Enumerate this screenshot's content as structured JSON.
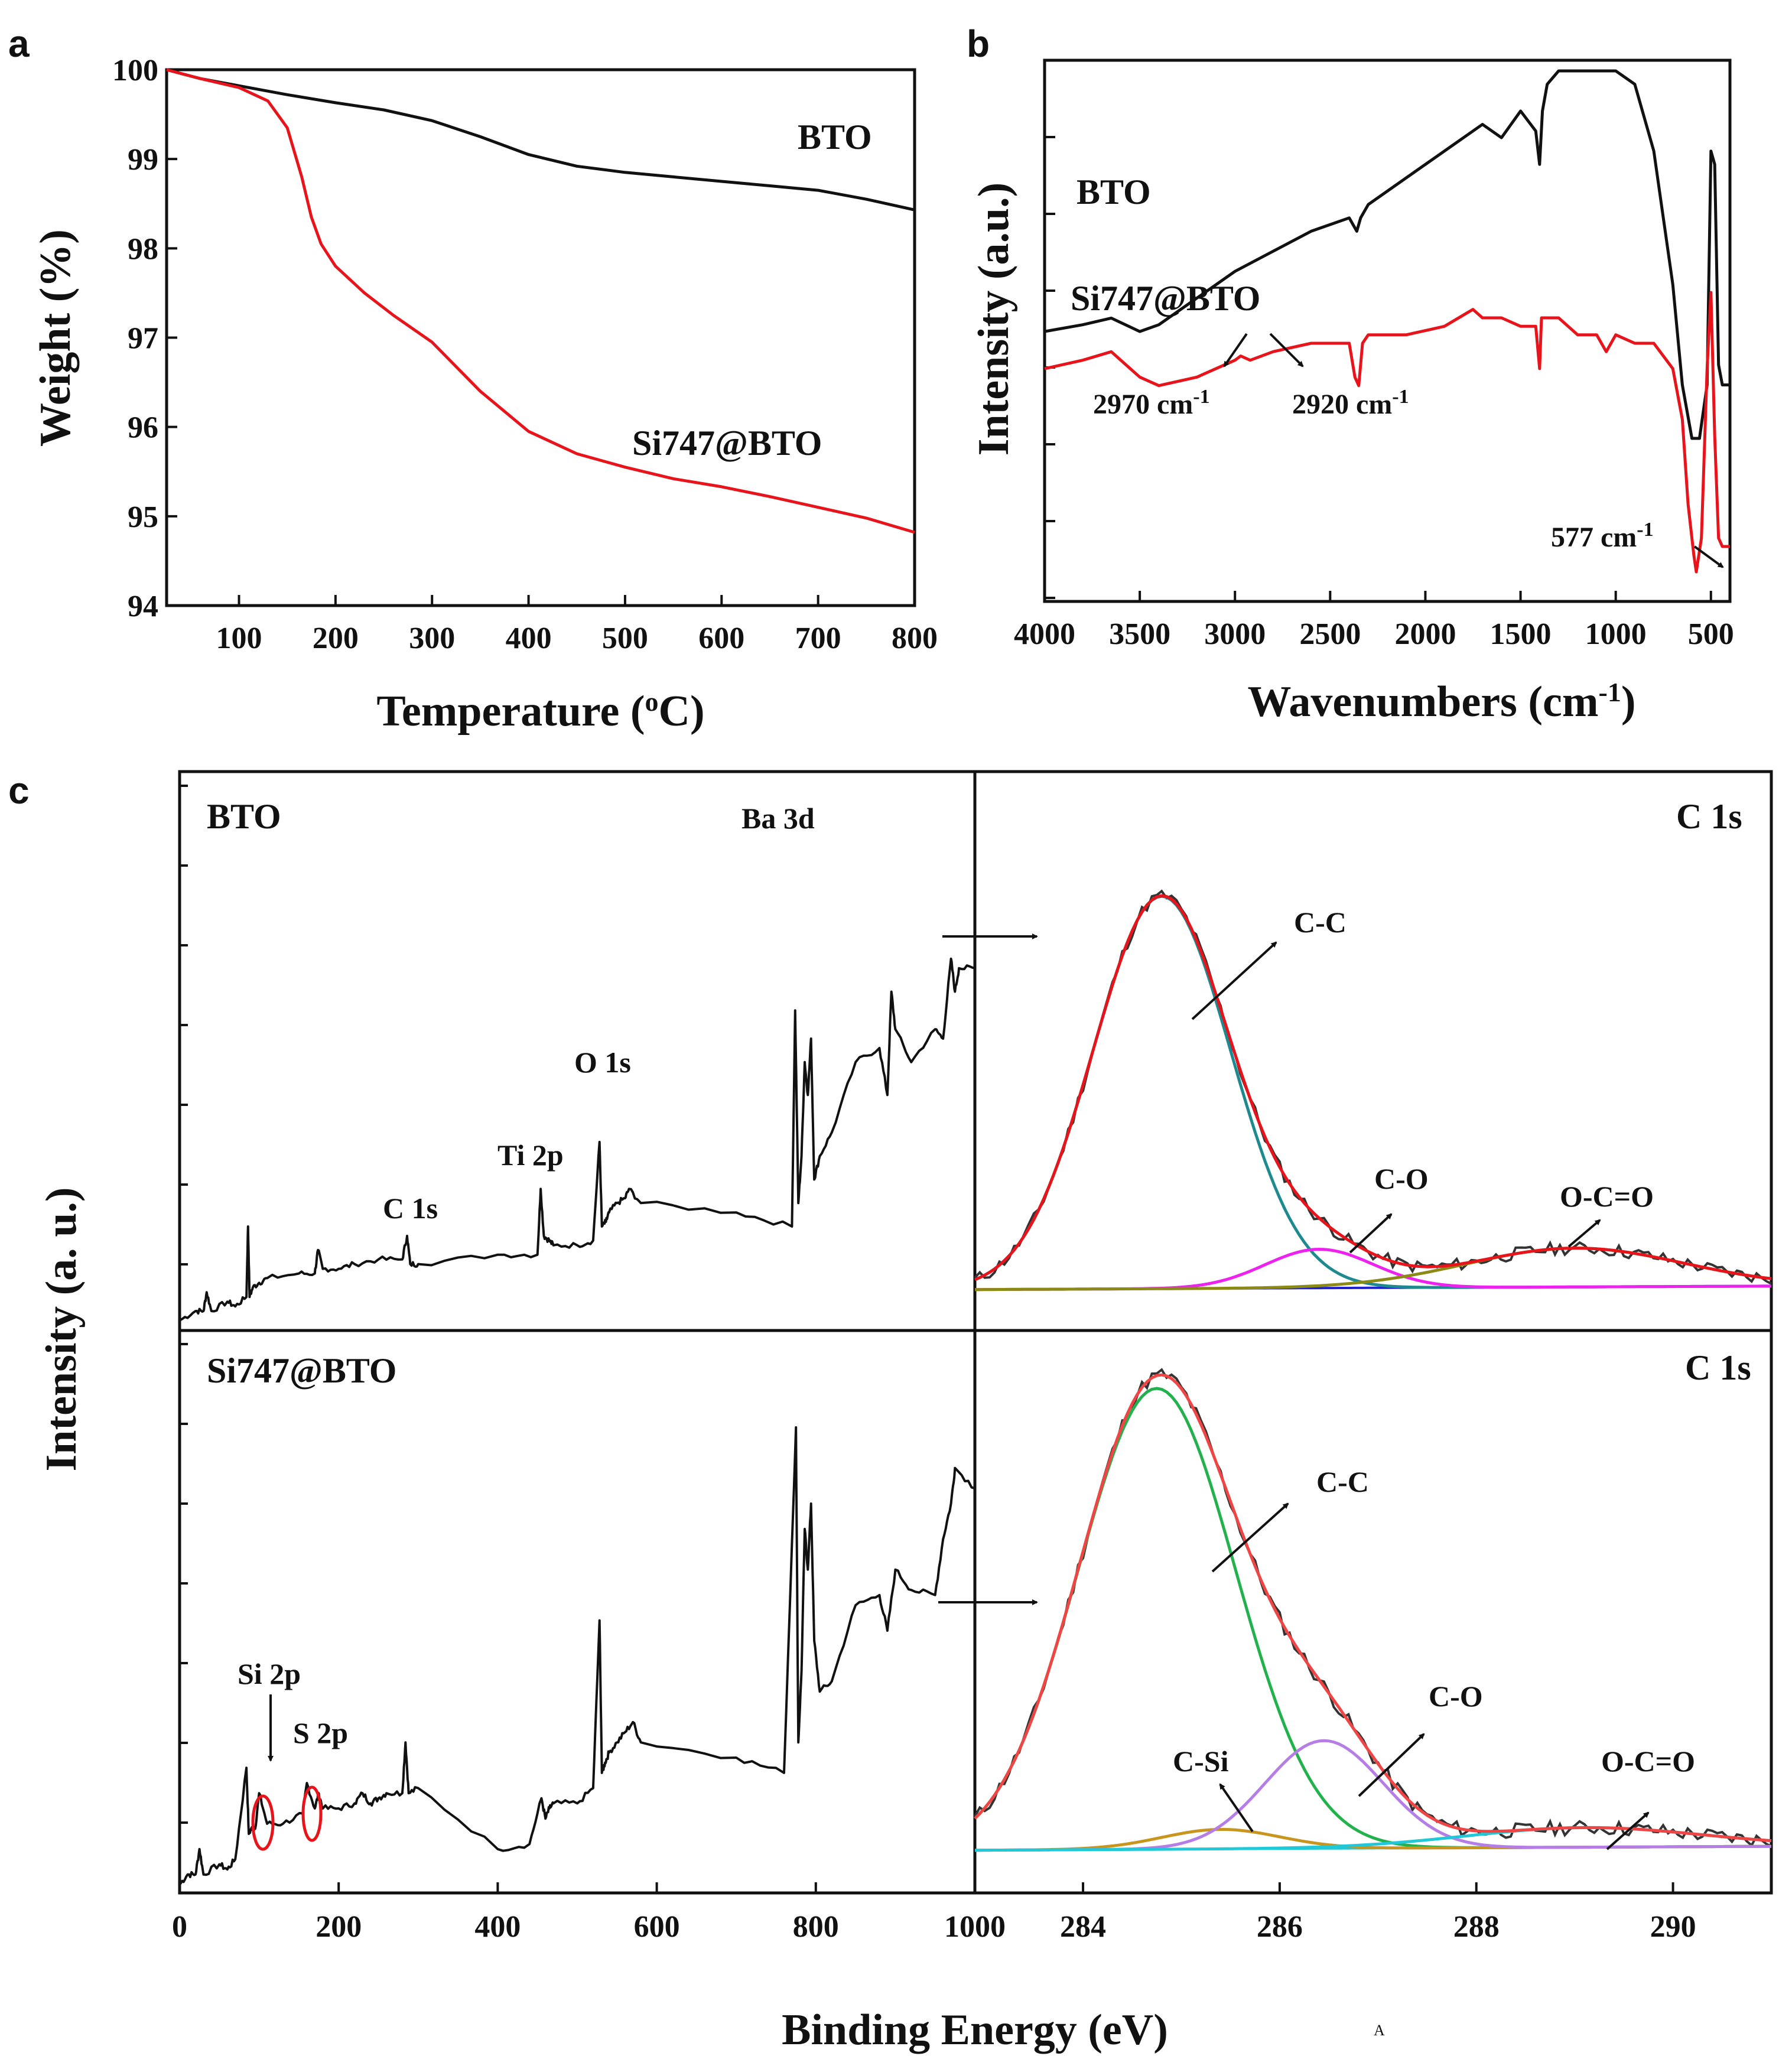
{
  "colors": {
    "black": "#111111",
    "red": "#e8141b",
    "teal": "#1e8a8f",
    "magenta": "#ee22ee",
    "olive": "#8b8a16",
    "blue": "#2020d0",
    "green": "#22b14c",
    "purple": "#b57ee6",
    "gold": "#c8961e",
    "cyan": "#20c8d8",
    "redfit": "#ef4545"
  },
  "chart_data": [
    {
      "id": "a",
      "panel_label": "a",
      "type": "line",
      "xlabel": "Temperature (°C)",
      "xlabel_pre": "Temperature (",
      "xlabel_sup": "o",
      "xlabel_post": "C)",
      "ylabel": "Weight (%)",
      "xlim": [
        25,
        800
      ],
      "ylim": [
        94,
        100
      ],
      "xticks": [
        "100",
        "200",
        "300",
        "400",
        "500",
        "600",
        "700",
        "800"
      ],
      "yticks": [
        "94",
        "95",
        "96",
        "97",
        "98",
        "99",
        "100"
      ],
      "series": [
        {
          "name": "BTO",
          "color": "black",
          "x": [
            25,
            60,
            100,
            150,
            200,
            250,
            300,
            350,
            400,
            450,
            500,
            550,
            600,
            650,
            700,
            750,
            800
          ],
          "y": [
            100,
            99.9,
            99.82,
            99.72,
            99.63,
            99.55,
            99.43,
            99.25,
            99.05,
            98.92,
            98.85,
            98.8,
            98.75,
            98.7,
            98.65,
            98.55,
            98.43
          ]
        },
        {
          "name": "Si747@BTO",
          "color": "red",
          "x": [
            25,
            60,
            100,
            130,
            150,
            165,
            175,
            185,
            200,
            230,
            260,
            300,
            350,
            400,
            450,
            500,
            550,
            600,
            650,
            700,
            750,
            800
          ],
          "y": [
            100,
            99.9,
            99.8,
            99.65,
            99.35,
            98.8,
            98.35,
            98.05,
            97.8,
            97.5,
            97.25,
            96.95,
            96.4,
            95.95,
            95.7,
            95.55,
            95.42,
            95.33,
            95.22,
            95.1,
            94.98,
            94.82
          ]
        }
      ],
      "legend_labels": [
        "BTO",
        "Si747@BTO"
      ]
    },
    {
      "id": "b",
      "panel_label": "b",
      "type": "line",
      "xlabel": "Wavenumbers (cm-1)",
      "xlabel_pre": "Wavenumbers (cm",
      "xlabel_sup": "-1",
      "xlabel_post": ")",
      "ylabel": "Intensity (a.u.)",
      "xlim": [
        4000,
        400
      ],
      "ylim": [
        0,
        100
      ],
      "x_reversed": true,
      "xticks": [
        "4000",
        "3500",
        "3000",
        "2500",
        "2000",
        "1500",
        "1000",
        "500"
      ],
      "series": [
        {
          "name": "BTO",
          "color": "black",
          "x": [
            4000,
            3800,
            3650,
            3500,
            3400,
            3200,
            3000,
            2800,
            2600,
            2400,
            2360,
            2340,
            2300,
            2100,
            1900,
            1700,
            1600,
            1500,
            1420,
            1400,
            1385,
            1360,
            1300,
            1200,
            1100,
            1000,
            900,
            800,
            700,
            650,
            600,
            560,
            520,
            500,
            480,
            460,
            440,
            400
          ],
          "y": [
            33,
            34,
            35,
            33,
            34,
            38,
            42,
            45,
            48,
            50,
            48,
            50,
            52,
            56,
            60,
            64,
            62,
            66,
            63,
            58,
            66,
            70,
            72,
            72,
            72,
            72,
            70,
            60,
            40,
            25,
            17,
            17,
            25,
            60,
            58,
            28,
            25,
            25
          ]
        },
        {
          "name": "Si747@BTO",
          "color": "red",
          "x": [
            4000,
            3800,
            3650,
            3500,
            3400,
            3200,
            3000,
            2970,
            2920,
            2800,
            2600,
            2400,
            2370,
            2350,
            2330,
            2300,
            2100,
            1900,
            1750,
            1700,
            1600,
            1500,
            1420,
            1400,
            1390,
            1380,
            1300,
            1200,
            1100,
            1050,
            1000,
            900,
            800,
            700,
            650,
            620,
            590,
            577,
            550,
            520,
            500,
            480,
            460,
            440,
            400
          ],
          "y": [
            28,
            29,
            30,
            27,
            26,
            27,
            29,
            29.5,
            29,
            30,
            31,
            31,
            27,
            26,
            31,
            32,
            32,
            33,
            35,
            34,
            34,
            33,
            33,
            28,
            34,
            34,
            34,
            32,
            32,
            30,
            32,
            31,
            31,
            28,
            22,
            12,
            6,
            4,
            8,
            28,
            37,
            20,
            8,
            7,
            7
          ]
        }
      ],
      "legend_labels": [
        "BTO",
        "Si747@BTO"
      ],
      "annotations": [
        {
          "text": "2970 cm-1",
          "num": "2970 cm",
          "sup": "-1"
        },
        {
          "text": "2920 cm-1",
          "num": "2920 cm",
          "sup": "-1"
        },
        {
          "text": "577 cm-1",
          "num": "577 cm",
          "sup": "-1"
        }
      ]
    },
    {
      "id": "c-survey-bto",
      "panel_label": "c",
      "type": "line",
      "title": "BTO",
      "xlim": [
        0,
        1000
      ],
      "ylim": [
        0,
        100
      ],
      "series": [
        {
          "name": "BTO survey",
          "color": "black",
          "x": [
            0,
            20,
            30,
            34,
            40,
            60,
            70,
            84,
            86,
            88,
            92,
            100,
            110,
            150,
            170,
            174,
            180,
            200,
            220,
            250,
            280,
            286,
            290,
            300,
            400,
            450,
            454,
            458,
            465,
            470,
            500,
            520,
            528,
            531,
            536,
            540,
            550,
            560,
            565,
            580,
            700,
            770,
            774,
            778,
            782,
            786,
            790,
            794,
            798,
            805,
            820,
            850,
            880,
            890,
            895,
            900,
            920,
            950,
            960,
            970,
            975,
            980,
            1000
          ],
          "y": [
            0,
            2,
            2,
            6,
            2,
            4,
            3,
            5,
            20,
            5,
            7,
            8,
            9,
            10,
            10,
            15,
            11,
            11,
            12,
            13,
            13,
            18,
            12,
            12,
            14,
            14,
            28,
            18,
            17,
            16,
            16,
            17,
            38,
            20,
            21,
            23,
            25,
            26,
            28,
            25,
            23,
            20,
            66,
            25,
            35,
            55,
            48,
            60,
            30,
            35,
            40,
            55,
            58,
            48,
            70,
            62,
            55,
            62,
            60,
            77,
            70,
            75,
            75
          ]
        }
      ],
      "peak_labels": [
        "C 1s",
        "Ti 2p",
        "O 1s",
        "Ba 3d"
      ]
    },
    {
      "id": "c-survey-si747",
      "type": "line",
      "title": "Si747@BTO",
      "xlabel": "Binding Energy (eV)",
      "ylabel": "Intensity (a. u.)",
      "xlim": [
        0,
        1000
      ],
      "ylim": [
        0,
        100
      ],
      "xticks": [
        "0",
        "200",
        "400",
        "600",
        "800",
        "1000"
      ],
      "series": [
        {
          "name": "Si747@BTO survey",
          "color": "black",
          "x": [
            0,
            10,
            20,
            25,
            30,
            50,
            60,
            70,
            84,
            87,
            90,
            95,
            100,
            110,
            130,
            155,
            160,
            170,
            175,
            180,
            200,
            220,
            230,
            240,
            250,
            260,
            280,
            284,
            288,
            300,
            400,
            440,
            455,
            460,
            465,
            470,
            500,
            520,
            528,
            531,
            535,
            540,
            550,
            560,
            570,
            580,
            700,
            760,
            775,
            778,
            782,
            786,
            790,
            794,
            798,
            805,
            820,
            850,
            880,
            890,
            900,
            920,
            950,
            960,
            970,
            975,
            1000
          ],
          "y": [
            0,
            2,
            2,
            7,
            2,
            4,
            3,
            5,
            23,
            10,
            11,
            11,
            18,
            12,
            12,
            14,
            20,
            15,
            18,
            15,
            15,
            16,
            18,
            16,
            17,
            18,
            18,
            28,
            18,
            19,
            7,
            8,
            17,
            13,
            15,
            16,
            16,
            19,
            52,
            22,
            24,
            26,
            28,
            30,
            32,
            28,
            25,
            22,
            90,
            28,
            42,
            70,
            62,
            75,
            48,
            38,
            40,
            55,
            57,
            50,
            62,
            58,
            57,
            68,
            75,
            82,
            78
          ]
        }
      ],
      "peak_labels": [
        "Si 2p",
        "S 2p"
      ]
    },
    {
      "id": "c-c1s-bto",
      "type": "line",
      "title": "C 1s",
      "xlim": [
        282.9,
        291
      ],
      "ylim": [
        0,
        100
      ],
      "components": [
        {
          "name": "C-C",
          "center": 284.8,
          "height": 91,
          "width": 0.7,
          "color": "teal"
        },
        {
          "name": "C-O",
          "center": 286.4,
          "height": 9,
          "width": 0.55,
          "color": "magenta"
        },
        {
          "name": "O-C=O",
          "center": 289.0,
          "height": 9,
          "width": 1.1,
          "color": "olive"
        }
      ],
      "labels": [
        "C-C",
        "C-O",
        "O-C=O"
      ]
    },
    {
      "id": "c-c1s-si747",
      "type": "line",
      "title": "C 1s",
      "xlim": [
        282.9,
        291
      ],
      "ylim": [
        0,
        100
      ],
      "xticks": [
        "284",
        "286",
        "288",
        "290"
      ],
      "components": [
        {
          "name": "C-C",
          "center": 284.75,
          "height": 94,
          "width": 0.8,
          "color": "green"
        },
        {
          "name": "C-Si",
          "center": 285.4,
          "height": 4,
          "width": 0.6,
          "color": "gold"
        },
        {
          "name": "C-O",
          "center": 286.45,
          "height": 22,
          "width": 0.6,
          "color": "purple"
        },
        {
          "name": "O-C=O",
          "center": 289.1,
          "height": 4,
          "width": 1.2,
          "color": "cyan"
        }
      ],
      "labels": [
        "C-C",
        "C-Si",
        "C-O",
        "O-C=O"
      ]
    }
  ],
  "stray_mark": "A"
}
